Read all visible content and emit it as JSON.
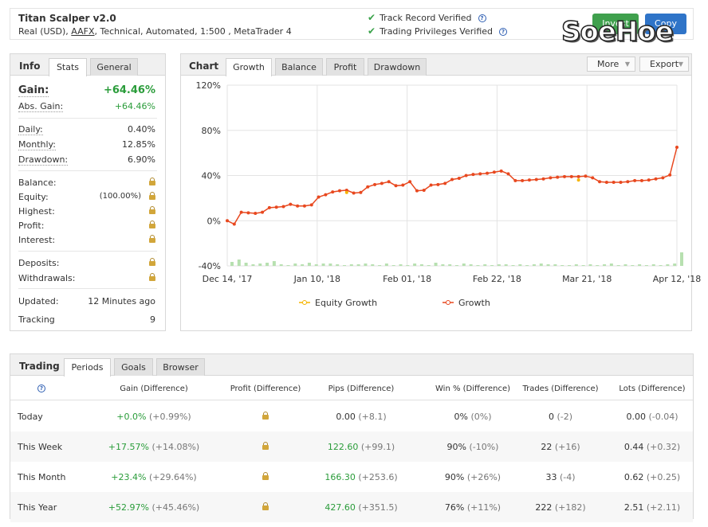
{
  "header": {
    "title": "Titan Scalper v2.0",
    "subtitle_pre": "Real (USD), ",
    "broker": "AAFX",
    "subtitle_post": ", Technical, Automated, 1:500 , MetaTrader 4",
    "verified": [
      "Track Record Verified",
      "Trading Privileges Verified"
    ],
    "invest_label": "Invest",
    "copy_label": "Copy",
    "watermark": "SoeHoe"
  },
  "info": {
    "tab_title": "Info",
    "tabs": [
      "Stats",
      "General"
    ],
    "gain_label": "Gain:",
    "gain_value": "+64.46%",
    "abs_gain_label": "Abs. Gain:",
    "abs_gain_value": "+64.46%",
    "daily_label": "Daily:",
    "daily_value": "0.40%",
    "monthly_label": "Monthly:",
    "monthly_value": "12.85%",
    "drawdown_label": "Drawdown:",
    "drawdown_value": "6.90%",
    "balance_label": "Balance:",
    "equity_label": "Equity:",
    "equity_pct": "(100.00%)",
    "highest_label": "Highest:",
    "profit_label": "Profit:",
    "interest_label": "Interest:",
    "deposits_label": "Deposits:",
    "withdrawals_label": "Withdrawals:",
    "updated_label": "Updated:",
    "updated_value": "12 Minutes ago",
    "tracking_label": "Tracking",
    "tracking_value": "9"
  },
  "chart_panel": {
    "title": "Chart",
    "tabs": [
      "Growth",
      "Balance",
      "Profit",
      "Drawdown"
    ],
    "more_label": "More",
    "export_label": "Export"
  },
  "chart_data": {
    "type": "line",
    "ylim": [
      -40,
      120
    ],
    "yticks": [
      "120%",
      "80%",
      "40%",
      "0%",
      "-40%"
    ],
    "xtick_labels": [
      "Dec 14, '17",
      "Jan 10, '18",
      "Feb 01, '18",
      "Feb 22, '18",
      "Mar 21, '18",
      "Apr 12, '18"
    ],
    "series": [
      {
        "name": "Equity Growth",
        "color": "#f5b400",
        "points": [
          [
            17,
            25
          ],
          [
            50,
            36
          ]
        ]
      },
      {
        "name": "Growth",
        "color": "#e8481f",
        "values": [
          0,
          -3,
          7.5,
          7,
          6.5,
          7.5,
          11.5,
          12,
          12.5,
          14.5,
          13,
          13,
          14,
          21,
          23,
          25.5,
          26.5,
          27,
          24.5,
          25,
          30,
          32,
          33,
          34.5,
          31,
          31.5,
          34.5,
          26.5,
          27,
          31.5,
          32,
          33,
          36.5,
          37.5,
          40,
          41,
          41.5,
          42,
          43,
          44,
          41.5,
          35.5,
          35.5,
          36,
          36.5,
          37,
          38,
          38.5,
          39,
          39,
          39,
          39.5,
          38,
          34.5,
          34,
          34,
          34,
          34.5,
          35.5,
          35.5,
          36,
          37,
          38,
          40.5,
          65
        ]
      }
    ],
    "volume_bars": [
      5,
      8,
      4,
      2,
      3,
      4,
      6,
      2,
      1,
      3,
      2,
      4,
      2,
      3,
      3,
      2,
      1,
      2,
      2,
      3,
      2,
      1,
      3,
      1,
      2,
      1,
      3,
      2,
      1,
      4,
      2,
      2,
      1,
      3,
      2,
      1,
      2,
      1,
      2,
      2,
      1,
      2,
      1,
      2,
      3,
      2,
      2,
      1,
      1,
      2,
      1,
      2,
      1,
      2,
      3,
      1,
      2,
      1,
      2,
      1,
      2,
      1,
      2,
      3,
      17
    ]
  },
  "trading": {
    "tab_title": "Trading",
    "tabs": [
      "Periods",
      "Goals",
      "Browser"
    ],
    "headers": [
      "Gain (Difference)",
      "Profit (Difference)",
      "Pips (Difference)",
      "Win % (Difference)",
      "Trades (Difference)",
      "Lots (Difference)"
    ],
    "rows": [
      {
        "period": "Today",
        "gain": "+0.0%",
        "gain_diff": "(+0.99%)",
        "pips": "0.00",
        "pips_diff": "(+8.1)",
        "win": "0%",
        "win_diff": "(0%)",
        "trades": "0",
        "trades_diff": "(-2)",
        "lots": "0.00",
        "lots_diff": "(-0.04)"
      },
      {
        "period": "This Week",
        "gain": "+17.57%",
        "gain_diff": "(+14.08%)",
        "pips": "122.60",
        "pips_diff": "(+99.1)",
        "win": "90%",
        "win_diff": "(-10%)",
        "trades": "22",
        "trades_diff": "(+16)",
        "lots": "0.44",
        "lots_diff": "(+0.32)"
      },
      {
        "period": "This Month",
        "gain": "+23.4%",
        "gain_diff": "(+29.64%)",
        "pips": "166.30",
        "pips_diff": "(+253.6)",
        "win": "90%",
        "win_diff": "(+26%)",
        "trades": "33",
        "trades_diff": "(-4)",
        "lots": "0.62",
        "lots_diff": "(+0.25)"
      },
      {
        "period": "This Year",
        "gain": "+52.97%",
        "gain_diff": "(+45.46%)",
        "pips": "427.60",
        "pips_diff": "(+351.5)",
        "win": "76%",
        "win_diff": "(+11%)",
        "trades": "222",
        "trades_diff": "(+182)",
        "lots": "2.51",
        "lots_diff": "(+2.11)"
      }
    ]
  }
}
